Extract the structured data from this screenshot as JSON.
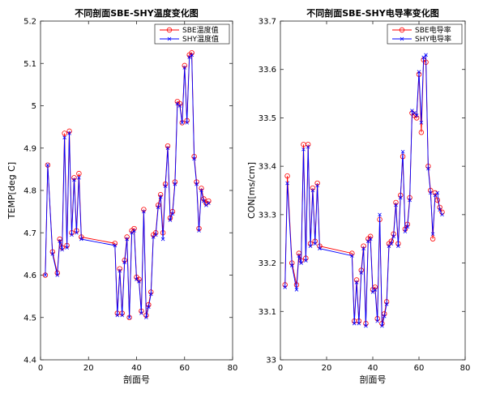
{
  "chart_data": [
    {
      "type": "line",
      "title": "不同剖面SBE-SHY温度变化图",
      "xlabel": "剖面号",
      "ylabel": "TEMP[deg C]",
      "xlim": [
        0,
        80
      ],
      "ylim": [
        4.4,
        5.2
      ],
      "xticks": [
        0,
        20,
        40,
        60,
        80
      ],
      "yticks": [
        4.4,
        4.5,
        4.6,
        4.7,
        4.8,
        4.9,
        5,
        5.1,
        5.2
      ],
      "legend_position": "top-right",
      "series": [
        {
          "name": "SBE温度值",
          "color": "#ff0000",
          "marker": "circle",
          "x": [
            2,
            3,
            5,
            7,
            8,
            9,
            10,
            11,
            12,
            13,
            14,
            15,
            16,
            17,
            31,
            32,
            33,
            34,
            35,
            36,
            37,
            38,
            39,
            40,
            41,
            42,
            43,
            44,
            45,
            46,
            47,
            48,
            49,
            50,
            51,
            52,
            53,
            54,
            55,
            56,
            57,
            58,
            59,
            60,
            61,
            62,
            63,
            64,
            65,
            66,
            67,
            68,
            69,
            70
          ],
          "y": [
            4.6,
            4.86,
            4.655,
            4.605,
            4.685,
            4.665,
            4.935,
            4.67,
            4.94,
            4.7,
            4.83,
            4.705,
            4.84,
            4.69,
            4.675,
            4.51,
            4.615,
            4.51,
            4.635,
            4.69,
            4.5,
            4.705,
            4.71,
            4.595,
            4.59,
            4.515,
            4.755,
            4.505,
            4.53,
            4.56,
            4.695,
            4.7,
            4.765,
            4.79,
            4.7,
            4.815,
            4.905,
            4.735,
            4.75,
            4.82,
            5.01,
            5.005,
            4.96,
            5.095,
            4.965,
            5.12,
            5.125,
            4.88,
            4.82,
            4.71,
            4.805,
            4.78,
            4.77,
            4.775
          ]
        },
        {
          "name": "SHY温度值",
          "color": "#0000ff",
          "marker": "x",
          "x": [
            2,
            3,
            5,
            7,
            8,
            9,
            10,
            11,
            12,
            13,
            14,
            15,
            16,
            17,
            31,
            32,
            33,
            34,
            35,
            36,
            37,
            38,
            39,
            40,
            41,
            42,
            43,
            44,
            45,
            46,
            47,
            48,
            49,
            50,
            51,
            52,
            53,
            54,
            55,
            56,
            57,
            58,
            59,
            60,
            61,
            62,
            63,
            64,
            65,
            66,
            67,
            68,
            69,
            70
          ],
          "y": [
            4.6,
            4.86,
            4.65,
            4.6,
            4.68,
            4.66,
            4.925,
            4.665,
            4.935,
            4.695,
            4.825,
            4.7,
            4.83,
            4.685,
            4.67,
            4.505,
            4.61,
            4.505,
            4.63,
            4.685,
            4.5,
            4.7,
            4.705,
            4.59,
            4.585,
            4.51,
            4.75,
            4.5,
            4.525,
            4.555,
            4.69,
            4.695,
            4.76,
            4.785,
            4.685,
            4.81,
            4.9,
            4.73,
            4.745,
            4.815,
            5.005,
            5.0,
            4.96,
            5.09,
            4.96,
            5.115,
            5.12,
            4.875,
            4.815,
            4.705,
            4.8,
            4.775,
            4.765,
            4.77
          ]
        }
      ]
    },
    {
      "type": "line",
      "title": "不同剖面SBE-SHY电导率变化图",
      "xlabel": "剖面号",
      "ylabel": "CON[ms/cm]",
      "xlim": [
        0,
        80
      ],
      "ylim": [
        33,
        33.7
      ],
      "xticks": [
        0,
        20,
        40,
        60,
        80
      ],
      "yticks": [
        33,
        33.1,
        33.2,
        33.3,
        33.4,
        33.5,
        33.6,
        33.7
      ],
      "legend_position": "top-right",
      "series": [
        {
          "name": "SBE电导率",
          "color": "#ff0000",
          "marker": "circle",
          "x": [
            2,
            3,
            5,
            7,
            8,
            9,
            10,
            11,
            12,
            13,
            14,
            15,
            16,
            17,
            31,
            32,
            33,
            34,
            35,
            36,
            37,
            38,
            39,
            40,
            41,
            42,
            43,
            44,
            45,
            46,
            47,
            48,
            49,
            50,
            51,
            52,
            53,
            54,
            55,
            56,
            57,
            58,
            59,
            60,
            61,
            62,
            63,
            64,
            65,
            66,
            67,
            68,
            69,
            70
          ],
          "y": [
            33.155,
            33.38,
            33.2,
            33.155,
            33.22,
            33.205,
            33.445,
            33.21,
            33.445,
            33.24,
            33.355,
            33.245,
            33.365,
            33.235,
            33.22,
            33.08,
            33.165,
            33.08,
            33.185,
            33.235,
            33.075,
            33.25,
            33.255,
            33.145,
            33.15,
            33.085,
            33.29,
            33.075,
            33.095,
            33.12,
            33.24,
            33.245,
            33.26,
            33.325,
            33.24,
            33.34,
            33.42,
            33.27,
            33.28,
            33.335,
            33.51,
            33.505,
            33.5,
            33.59,
            33.47,
            33.62,
            33.615,
            33.4,
            33.35,
            33.25,
            33.345,
            33.33,
            33.315,
            33.305
          ]
        },
        {
          "name": "SHY电导率",
          "color": "#0000ff",
          "marker": "x",
          "x": [
            2,
            3,
            5,
            7,
            8,
            9,
            10,
            11,
            12,
            13,
            14,
            15,
            16,
            17,
            31,
            32,
            33,
            34,
            35,
            36,
            37,
            38,
            39,
            40,
            41,
            42,
            43,
            44,
            45,
            46,
            47,
            48,
            49,
            50,
            51,
            52,
            53,
            54,
            55,
            56,
            57,
            58,
            59,
            60,
            61,
            62,
            63,
            64,
            65,
            66,
            67,
            68,
            69,
            70
          ],
          "y": [
            33.15,
            33.365,
            33.195,
            33.145,
            33.215,
            33.2,
            33.435,
            33.205,
            33.44,
            33.235,
            33.35,
            33.24,
            33.36,
            33.23,
            33.215,
            33.075,
            33.16,
            33.075,
            33.18,
            33.23,
            33.07,
            33.245,
            33.25,
            33.14,
            33.145,
            33.08,
            33.3,
            33.07,
            33.09,
            33.115,
            33.235,
            33.24,
            33.255,
            33.32,
            33.235,
            33.335,
            33.43,
            33.265,
            33.275,
            33.33,
            33.515,
            33.51,
            33.505,
            33.595,
            33.49,
            33.625,
            33.63,
            33.395,
            33.345,
            33.26,
            33.34,
            33.345,
            33.31,
            33.3
          ]
        }
      ]
    }
  ]
}
